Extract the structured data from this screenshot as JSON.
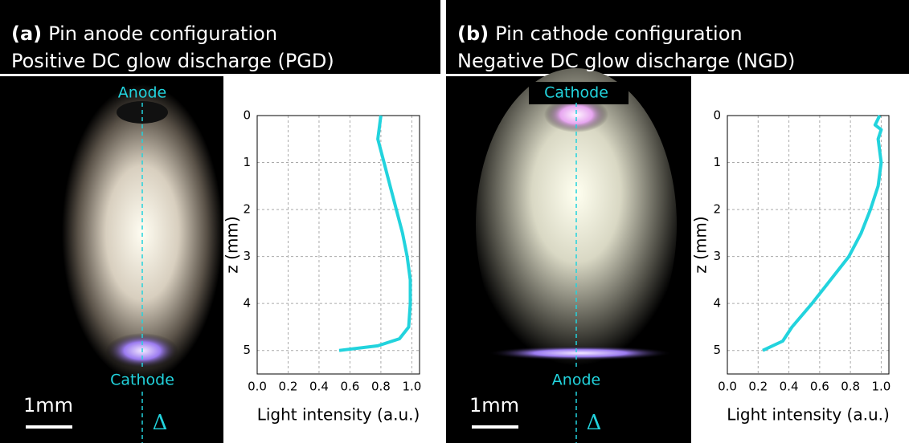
{
  "chart_data": [
    {
      "type": "line",
      "label": "(a)",
      "title": "Pin anode configuration",
      "subtitle": "Positive DC glow discharge (PGD)",
      "electrode_top": "Anode",
      "electrode_bottom": "Cathode",
      "scale_bar": "1mm",
      "axis_symbol": "Δ",
      "xlabel": "Light intensity (a.u.)",
      "ylabel": "z (mm)",
      "xlim": [
        0,
        1.05
      ],
      "xticks": [
        {
          "value": 0,
          "label": "0.0"
        },
        0.2,
        0.4,
        0.6,
        0.8,
        {
          "value": 1,
          "label": "1.0"
        }
      ],
      "ylim": [
        0,
        5.5
      ],
      "yticks": [
        0,
        1,
        2,
        3,
        4,
        5
      ],
      "y_inverted": true,
      "grid": true,
      "y": [
        0,
        0.5,
        1,
        1.5,
        2,
        2.5,
        3,
        3.5,
        4,
        4.5,
        4.75,
        4.9,
        5
      ],
      "series": [
        {
          "color": "#22d3dd",
          "values": [
            0.8,
            0.78,
            0.82,
            0.86,
            0.9,
            0.94,
            0.97,
            0.99,
            0.99,
            0.98,
            0.92,
            0.78,
            0.53
          ]
        }
      ]
    },
    {
      "type": "line",
      "label": "(b)",
      "title": "Pin cathode configuration",
      "subtitle": "Negative DC glow discharge (NGD)",
      "electrode_top": "Cathode",
      "electrode_bottom": "Anode",
      "scale_bar": "1mm",
      "axis_symbol": "Δ",
      "xlabel": "Light intensity (a.u.)",
      "ylabel": "z (mm)",
      "xlim": [
        0,
        1.05
      ],
      "xticks": [
        {
          "value": 0,
          "label": "0.0"
        },
        0.2,
        0.4,
        0.6,
        0.8,
        {
          "value": 1,
          "label": "1.0"
        }
      ],
      "ylim": [
        0,
        5.5
      ],
      "yticks": [
        0,
        1,
        2,
        3,
        4,
        5
      ],
      "y_inverted": true,
      "grid": true,
      "y": [
        0,
        0.2,
        0.3,
        0.5,
        1,
        1.5,
        2,
        2.5,
        3,
        3.5,
        4,
        4.5,
        4.8,
        5
      ],
      "series": [
        {
          "color": "#22d3dd",
          "values": [
            0.99,
            0.96,
            1.0,
            0.98,
            1.0,
            0.98,
            0.93,
            0.87,
            0.79,
            0.67,
            0.55,
            0.42,
            0.36,
            0.23
          ]
        }
      ]
    }
  ]
}
